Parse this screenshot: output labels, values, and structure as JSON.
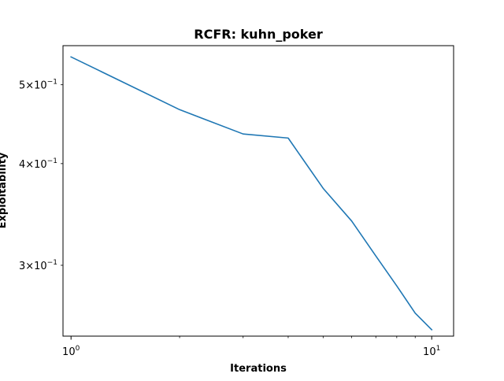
{
  "chart_data": {
    "type": "line",
    "title": "RCFR: kuhn_poker",
    "xlabel": "Iterations",
    "ylabel": "Exploitability",
    "xscale": "log",
    "yscale": "log",
    "xlim": [
      0.95,
      11.5
    ],
    "ylim": [
      0.2455,
      0.5585
    ],
    "grid": false,
    "legend": "none",
    "x_ticks": [
      {
        "value": 1,
        "base": "10",
        "exp": "0"
      },
      {
        "value": 10,
        "base": "10",
        "exp": "1"
      }
    ],
    "y_ticks": [
      {
        "value": 0.3,
        "mant": "3",
        "base": "10",
        "exp": "−1"
      },
      {
        "value": 0.4,
        "mant": "4",
        "base": "10",
        "exp": "−1"
      },
      {
        "value": 0.5,
        "mant": "5",
        "base": "10",
        "exp": "−1"
      }
    ],
    "series": [
      {
        "color": "#1f77b4",
        "x": [
          1,
          2,
          3,
          4,
          5,
          6,
          7,
          8,
          9,
          10
        ],
        "y": [
          0.541,
          0.466,
          0.435,
          0.43,
          0.373,
          0.34,
          0.308,
          0.283,
          0.262,
          0.25
        ]
      }
    ]
  }
}
